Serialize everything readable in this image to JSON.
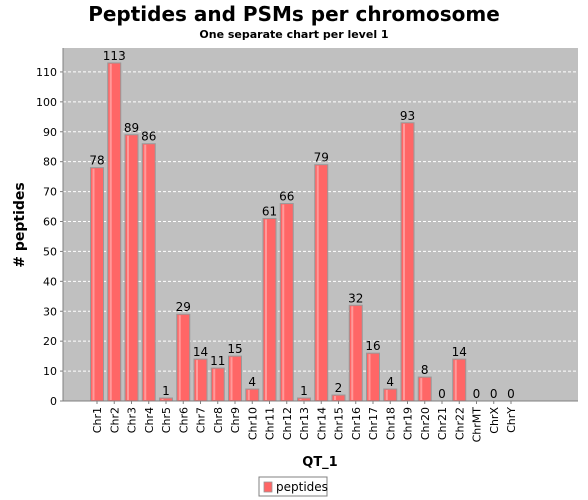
{
  "chart_data": {
    "type": "bar",
    "title": "Peptides and PSMs per chromosome",
    "subtitle": "One separate chart per level 1",
    "xlabel": "QT_1",
    "ylabel": "# peptides",
    "categories": [
      "Chr1",
      "Chr2",
      "Chr3",
      "Chr4",
      "Chr5",
      "Chr6",
      "Chr7",
      "Chr8",
      "Chr9",
      "Chr10",
      "Chr11",
      "Chr12",
      "Chr13",
      "Chr14",
      "Chr15",
      "Chr16",
      "Chr17",
      "Chr18",
      "Chr19",
      "Chr20",
      "Chr21",
      "Chr22",
      "ChrMT",
      "ChrX",
      "ChrY"
    ],
    "series": [
      {
        "name": "peptides",
        "values": [
          78,
          113,
          89,
          86,
          1,
          29,
          14,
          11,
          15,
          4,
          61,
          66,
          1,
          79,
          2,
          32,
          16,
          4,
          93,
          8,
          0,
          14,
          0,
          0,
          0
        ]
      }
    ],
    "ylim": [
      0,
      118
    ],
    "yticks": [
      0,
      10,
      20,
      30,
      40,
      50,
      60,
      70,
      80,
      90,
      100,
      110
    ],
    "grid": true,
    "legend": "bottom-center",
    "colors": {
      "bar": "#ff6666",
      "bar_edge": "#999999",
      "plot_bg": "#c0c0c0",
      "grid": "#ffffff"
    }
  }
}
